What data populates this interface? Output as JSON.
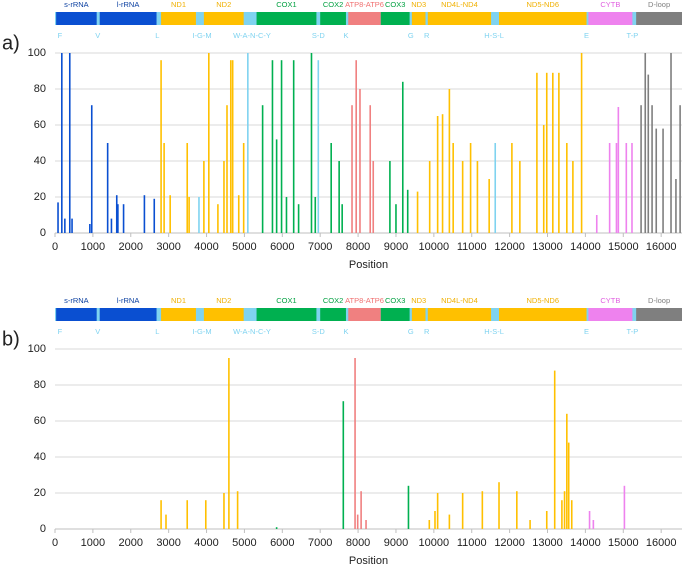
{
  "chart_data": [
    {
      "type": "bar",
      "panel_label": "a)",
      "xlabel": "Position",
      "xlim": [
        0,
        16550
      ],
      "xticks": [
        0,
        1000,
        2000,
        3000,
        4000,
        5000,
        6000,
        7000,
        8000,
        9000,
        10000,
        11000,
        12000,
        13000,
        14000,
        15000,
        16000
      ],
      "ylim": [
        0,
        100
      ],
      "yticks": [
        0,
        20,
        40,
        60,
        80,
        100
      ],
      "grid": true,
      "track_color": "#7fd3f0",
      "segments": [
        {
          "name": "s-rRNA",
          "start": 30,
          "end": 1100,
          "color": "#0a4fd1",
          "label_color": "#0a3fa0"
        },
        {
          "name": "l-rRNA",
          "start": 1180,
          "end": 2680,
          "color": "#0a4fd1",
          "label_color": "#0a3fa0"
        },
        {
          "name": "ND1",
          "start": 2800,
          "end": 3720,
          "color": "#ffc000",
          "label_color": "#f0b000"
        },
        {
          "name": "ND2",
          "start": 3930,
          "end": 4980,
          "color": "#ffc000",
          "label_color": "#f0b000"
        },
        {
          "name": "COX1",
          "start": 5320,
          "end": 6900,
          "color": "#00b050",
          "label_color": "#00a040"
        },
        {
          "name": "COX2",
          "start": 7000,
          "end": 7680,
          "color": "#00b050",
          "label_color": "#00a040"
        },
        {
          "name": "ATP8-ATP6",
          "start": 7740,
          "end": 8600,
          "color": "#f08080",
          "label_color": "#f07070"
        },
        {
          "name": "COX3",
          "start": 8600,
          "end": 9360,
          "color": "#00b050",
          "label_color": "#00a040"
        },
        {
          "name": "ND3",
          "start": 9420,
          "end": 9780,
          "color": "#ffc000",
          "label_color": "#f0b000"
        },
        {
          "name": "ND4L-ND4",
          "start": 9840,
          "end": 11510,
          "color": "#ffc000",
          "label_color": "#f0b000"
        },
        {
          "name": "ND5-ND6",
          "start": 11720,
          "end": 14030,
          "color": "#ffc000",
          "label_color": "#f0b000"
        },
        {
          "name": "CYTB",
          "start": 14080,
          "end": 15240,
          "color": "#ee82ee",
          "label_color": "#e060e0"
        },
        {
          "name": "D-loop",
          "start": 15340,
          "end": 16550,
          "color": "#7f7f7f",
          "label_color": "#7f7f7f"
        }
      ],
      "trna": [
        {
          "name": "F",
          "pos": 130
        },
        {
          "name": "V",
          "pos": 1130
        },
        {
          "name": "L",
          "pos": 2700
        },
        {
          "name": "I-G-M",
          "pos": 3880
        },
        {
          "name": "W-A-N-C-Y",
          "pos": 5200
        },
        {
          "name": "S-D",
          "pos": 6950
        },
        {
          "name": "K",
          "pos": 7680
        },
        {
          "name": "G",
          "pos": 9390
        },
        {
          "name": "R",
          "pos": 9810
        },
        {
          "name": "H-S-L",
          "pos": 11590
        },
        {
          "name": "E",
          "pos": 14030
        },
        {
          "name": "T-P",
          "pos": 15240
        }
      ],
      "x": [
        80,
        180,
        260,
        390,
        450,
        920,
        970,
        1390,
        1490,
        1630,
        1660,
        1810,
        2360,
        2620,
        2800,
        2880,
        3040,
        3490,
        3540,
        3800,
        3930,
        4060,
        4300,
        4460,
        4540,
        4640,
        4690,
        4850,
        4980,
        5090,
        5480,
        5740,
        5850,
        5980,
        6110,
        6300,
        6430,
        6770,
        6870,
        6950,
        7290,
        7500,
        7580,
        7840,
        7950,
        8050,
        8320,
        8400,
        8840,
        9000,
        9180,
        9310,
        9570,
        9890,
        10100,
        10230,
        10410,
        10510,
        10760,
        10970,
        11150,
        11460,
        11620,
        12060,
        12270,
        12720,
        12900,
        12980,
        13140,
        13300,
        13510,
        13670,
        13900,
        14300,
        14640,
        14820,
        14870,
        15080,
        15230,
        15470,
        15580,
        15660,
        15760,
        15870,
        16050,
        16260,
        16390,
        16500
      ],
      "values": [
        17,
        100,
        8,
        100,
        8,
        5,
        71,
        50,
        8,
        21,
        16,
        16,
        21,
        19,
        96,
        50,
        21,
        50,
        20,
        20,
        40,
        100,
        16,
        40,
        71,
        96,
        96,
        21,
        50,
        100,
        71,
        96,
        52,
        96,
        20,
        96,
        16,
        100,
        20,
        96,
        50,
        40,
        16,
        71,
        96,
        80,
        71,
        40,
        40,
        16,
        84,
        24,
        23,
        40,
        65,
        66,
        80,
        50,
        40,
        50,
        40,
        30,
        50,
        50,
        40,
        89,
        60,
        89,
        89,
        89,
        50,
        40,
        100,
        10,
        50,
        50,
        70,
        50,
        50,
        71,
        100,
        88,
        71,
        58,
        58,
        100,
        30,
        71
      ]
    },
    {
      "type": "bar",
      "panel_label": "b)",
      "xlabel": "Position",
      "xlim": [
        0,
        16550
      ],
      "xticks": [
        0,
        1000,
        2000,
        3000,
        4000,
        5000,
        6000,
        7000,
        8000,
        9000,
        10000,
        11000,
        12000,
        13000,
        14000,
        15000,
        16000
      ],
      "ylim": [
        0,
        100
      ],
      "yticks": [
        0,
        20,
        40,
        60,
        80,
        100
      ],
      "grid": true,
      "track_color": "#7fd3f0",
      "segments": [
        {
          "name": "s-rRNA",
          "start": 30,
          "end": 1100,
          "color": "#0a4fd1",
          "label_color": "#0a3fa0"
        },
        {
          "name": "l-rRNA",
          "start": 1180,
          "end": 2680,
          "color": "#0a4fd1",
          "label_color": "#0a3fa0"
        },
        {
          "name": "ND1",
          "start": 2800,
          "end": 3720,
          "color": "#ffc000",
          "label_color": "#f0b000"
        },
        {
          "name": "ND2",
          "start": 3930,
          "end": 4980,
          "color": "#ffc000",
          "label_color": "#f0b000"
        },
        {
          "name": "COX1",
          "start": 5320,
          "end": 6900,
          "color": "#00b050",
          "label_color": "#00a040"
        },
        {
          "name": "COX2",
          "start": 7000,
          "end": 7680,
          "color": "#00b050",
          "label_color": "#00a040"
        },
        {
          "name": "ATP8-ATP6",
          "start": 7740,
          "end": 8600,
          "color": "#f08080",
          "label_color": "#f07070"
        },
        {
          "name": "COX3",
          "start": 8600,
          "end": 9360,
          "color": "#00b050",
          "label_color": "#00a040"
        },
        {
          "name": "ND3",
          "start": 9420,
          "end": 9780,
          "color": "#ffc000",
          "label_color": "#f0b000"
        },
        {
          "name": "ND4L-ND4",
          "start": 9840,
          "end": 11510,
          "color": "#ffc000",
          "label_color": "#f0b000"
        },
        {
          "name": "ND5-ND6",
          "start": 11720,
          "end": 14030,
          "color": "#ffc000",
          "label_color": "#f0b000"
        },
        {
          "name": "CYTB",
          "start": 14080,
          "end": 15240,
          "color": "#ee82ee",
          "label_color": "#e060e0"
        },
        {
          "name": "D-loop",
          "start": 15340,
          "end": 16550,
          "color": "#7f7f7f",
          "label_color": "#7f7f7f"
        }
      ],
      "trna": [
        {
          "name": "F",
          "pos": 130
        },
        {
          "name": "V",
          "pos": 1130
        },
        {
          "name": "L",
          "pos": 2700
        },
        {
          "name": "I-G-M",
          "pos": 3880
        },
        {
          "name": "W-A-N-C-Y",
          "pos": 5200
        },
        {
          "name": "S-D",
          "pos": 6950
        },
        {
          "name": "K",
          "pos": 7680
        },
        {
          "name": "G",
          "pos": 9390
        },
        {
          "name": "R",
          "pos": 9810
        },
        {
          "name": "H-S-L",
          "pos": 11590
        },
        {
          "name": "E",
          "pos": 14030
        },
        {
          "name": "T-P",
          "pos": 15240
        }
      ],
      "x": [
        2800,
        2930,
        3490,
        3980,
        4460,
        4590,
        4820,
        5850,
        7610,
        7920,
        7990,
        8080,
        8210,
        9330,
        9880,
        10030,
        10100,
        10410,
        10760,
        11280,
        11720,
        12190,
        12540,
        12980,
        13190,
        13380,
        13450,
        13510,
        13560,
        13640,
        14110,
        14210,
        15030
      ],
      "values": [
        16,
        8,
        16,
        16,
        20,
        95,
        21,
        1,
        71,
        95,
        8,
        21,
        5,
        24,
        5,
        10,
        20,
        8,
        20,
        21,
        26,
        21,
        5,
        10,
        88,
        16,
        21,
        64,
        48,
        16,
        10,
        5,
        24
      ]
    }
  ]
}
